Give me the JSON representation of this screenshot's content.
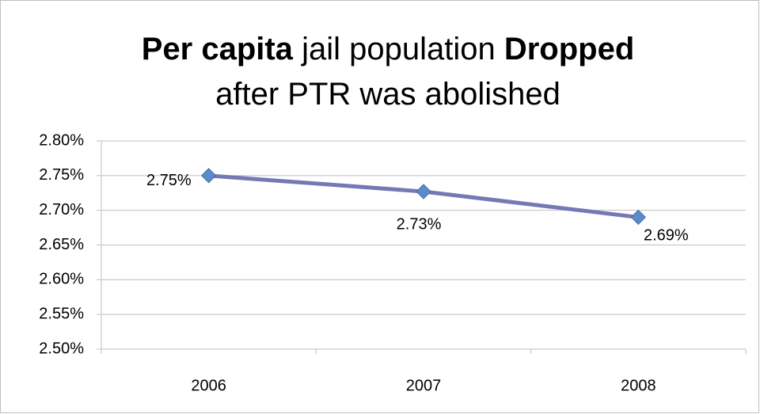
{
  "chart_data": {
    "type": "line",
    "title": [
      {
        "text": "Per capita",
        "bold": true
      },
      {
        "text": "jail population",
        "bold": false
      },
      {
        "text": "Dropped",
        "bold": true
      },
      {
        "text": "after PTR was abolished",
        "bold": false
      }
    ],
    "categories": [
      "2006",
      "2007",
      "2008"
    ],
    "series": [
      {
        "name": null,
        "color": "#7579b3",
        "marker_color": "#5b8bcc",
        "values": [
          2.75,
          2.727,
          2.69
        ],
        "value_labels": [
          "2.75%",
          "2.73%",
          "2.69%"
        ]
      }
    ],
    "ylim": [
      2.5,
      2.8
    ],
    "yticks": [
      {
        "value": 2.5,
        "label": "2.50%"
      },
      {
        "value": 2.55,
        "label": "2.55%"
      },
      {
        "value": 2.6,
        "label": "2.60%"
      },
      {
        "value": 2.65,
        "label": "2.65%"
      },
      {
        "value": 2.7,
        "label": "2.70%"
      },
      {
        "value": 2.75,
        "label": "2.75%"
      },
      {
        "value": 2.8,
        "label": "2.80%"
      }
    ],
    "grid": true
  }
}
